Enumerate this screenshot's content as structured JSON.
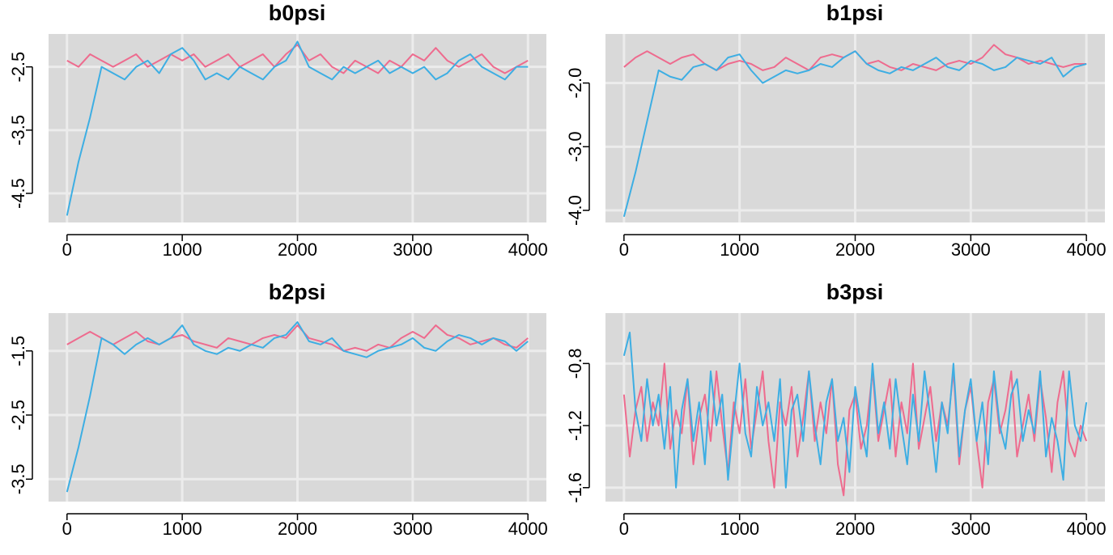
{
  "chart_data": [
    {
      "type": "line",
      "title": "b0psi",
      "x": [
        0,
        100,
        200,
        300,
        400,
        500,
        600,
        700,
        800,
        900,
        1000,
        1100,
        1200,
        1300,
        1400,
        1500,
        1600,
        1700,
        1800,
        1900,
        2000,
        2100,
        2200,
        2300,
        2400,
        2500,
        2600,
        2700,
        2800,
        2900,
        3000,
        3100,
        3200,
        3300,
        3400,
        3500,
        3600,
        3700,
        3800,
        3900,
        4000
      ],
      "series": [
        {
          "color": "#ee6b8e",
          "values": [
            -2.4,
            -2.5,
            -2.3,
            -2.4,
            -2.5,
            -2.4,
            -2.3,
            -2.5,
            -2.4,
            -2.3,
            -2.4,
            -2.3,
            -2.5,
            -2.4,
            -2.3,
            -2.5,
            -2.4,
            -2.3,
            -2.5,
            -2.3,
            -2.15,
            -2.4,
            -2.3,
            -2.5,
            -2.6,
            -2.4,
            -2.5,
            -2.6,
            -2.4,
            -2.5,
            -2.3,
            -2.4,
            -2.2,
            -2.4,
            -2.5,
            -2.4,
            -2.3,
            -2.5,
            -2.6,
            -2.5,
            -2.4
          ]
        },
        {
          "color": "#3daee3",
          "values": [
            -4.85,
            -4.0,
            -3.3,
            -2.5,
            -2.6,
            -2.7,
            -2.5,
            -2.4,
            -2.6,
            -2.3,
            -2.2,
            -2.4,
            -2.7,
            -2.6,
            -2.7,
            -2.5,
            -2.6,
            -2.7,
            -2.5,
            -2.4,
            -2.1,
            -2.5,
            -2.6,
            -2.7,
            -2.5,
            -2.6,
            -2.5,
            -2.4,
            -2.6,
            -2.5,
            -2.6,
            -2.5,
            -2.7,
            -2.6,
            -2.4,
            -2.3,
            -2.5,
            -2.6,
            -2.7,
            -2.5,
            -2.5
          ]
        }
      ],
      "xlim": [
        -160,
        4160
      ],
      "xticks": [
        0,
        1000,
        2000,
        3000,
        4000
      ],
      "ylim": [
        -4.96,
        -1.98
      ],
      "yticks": [
        -2.5,
        -3.5,
        -4.5
      ],
      "grid": true
    },
    {
      "type": "line",
      "title": "b1psi",
      "x": [
        0,
        100,
        200,
        300,
        400,
        500,
        600,
        700,
        800,
        900,
        1000,
        1100,
        1200,
        1300,
        1400,
        1500,
        1600,
        1700,
        1800,
        1900,
        2000,
        2100,
        2200,
        2300,
        2400,
        2500,
        2600,
        2700,
        2800,
        2900,
        3000,
        3100,
        3200,
        3300,
        3400,
        3500,
        3600,
        3700,
        3800,
        3900,
        4000
      ],
      "series": [
        {
          "color": "#ee6b8e",
          "values": [
            -1.75,
            -1.6,
            -1.5,
            -1.6,
            -1.7,
            -1.6,
            -1.55,
            -1.7,
            -1.8,
            -1.7,
            -1.65,
            -1.7,
            -1.8,
            -1.75,
            -1.6,
            -1.7,
            -1.8,
            -1.6,
            -1.55,
            -1.6,
            -1.5,
            -1.7,
            -1.65,
            -1.75,
            -1.8,
            -1.7,
            -1.75,
            -1.8,
            -1.7,
            -1.65,
            -1.7,
            -1.6,
            -1.4,
            -1.55,
            -1.6,
            -1.7,
            -1.65,
            -1.7,
            -1.75,
            -1.7,
            -1.7
          ]
        },
        {
          "color": "#3daee3",
          "values": [
            -4.1,
            -3.4,
            -2.6,
            -1.8,
            -1.9,
            -1.95,
            -1.75,
            -1.7,
            -1.8,
            -1.6,
            -1.55,
            -1.8,
            -2.0,
            -1.9,
            -1.8,
            -1.85,
            -1.8,
            -1.7,
            -1.75,
            -1.6,
            -1.5,
            -1.7,
            -1.8,
            -1.85,
            -1.75,
            -1.8,
            -1.7,
            -1.6,
            -1.75,
            -1.8,
            -1.65,
            -1.7,
            -1.8,
            -1.75,
            -1.6,
            -1.65,
            -1.7,
            -1.6,
            -1.9,
            -1.75,
            -1.7
          ]
        }
      ],
      "xlim": [
        -160,
        4160
      ],
      "xticks": [
        0,
        1000,
        2000,
        3000,
        4000
      ],
      "ylim": [
        -4.19,
        -1.23
      ],
      "yticks": [
        {
          "value": -2,
          "label": "-2.0"
        },
        {
          "value": -3,
          "label": "-3.0"
        },
        {
          "value": -4,
          "label": "-4.0"
        }
      ],
      "grid": true
    },
    {
      "type": "line",
      "title": "b2psi",
      "x": [
        0,
        100,
        200,
        300,
        400,
        500,
        600,
        700,
        800,
        900,
        1000,
        1100,
        1200,
        1300,
        1400,
        1500,
        1600,
        1700,
        1800,
        1900,
        2000,
        2100,
        2200,
        2300,
        2400,
        2500,
        2600,
        2700,
        2800,
        2900,
        3000,
        3100,
        3200,
        3300,
        3400,
        3500,
        3600,
        3700,
        3800,
        3900,
        4000
      ],
      "series": [
        {
          "color": "#ee6b8e",
          "values": [
            -1.4,
            -1.3,
            -1.2,
            -1.3,
            -1.4,
            -1.3,
            -1.2,
            -1.35,
            -1.4,
            -1.3,
            -1.25,
            -1.35,
            -1.4,
            -1.45,
            -1.3,
            -1.35,
            -1.4,
            -1.3,
            -1.25,
            -1.3,
            -1.1,
            -1.3,
            -1.35,
            -1.4,
            -1.5,
            -1.45,
            -1.5,
            -1.4,
            -1.45,
            -1.3,
            -1.2,
            -1.3,
            -1.1,
            -1.25,
            -1.3,
            -1.4,
            -1.35,
            -1.3,
            -1.4,
            -1.45,
            -1.3
          ]
        },
        {
          "color": "#3daee3",
          "values": [
            -3.7,
            -3.0,
            -2.2,
            -1.3,
            -1.4,
            -1.55,
            -1.4,
            -1.3,
            -1.4,
            -1.3,
            -1.1,
            -1.4,
            -1.5,
            -1.55,
            -1.45,
            -1.5,
            -1.4,
            -1.45,
            -1.3,
            -1.25,
            -1.05,
            -1.35,
            -1.4,
            -1.3,
            -1.5,
            -1.55,
            -1.6,
            -1.5,
            -1.45,
            -1.4,
            -1.3,
            -1.45,
            -1.5,
            -1.35,
            -1.25,
            -1.3,
            -1.4,
            -1.3,
            -1.35,
            -1.5,
            -1.35
          ]
        }
      ],
      "xlim": [
        -160,
        4160
      ],
      "xticks": [
        0,
        1000,
        2000,
        3000,
        4000
      ],
      "ylim": [
        -3.85,
        -0.91
      ],
      "yticks": [
        -1.5,
        -2.5,
        -3.5
      ],
      "grid": true
    },
    {
      "type": "line",
      "title": "b3psi",
      "x": [
        0,
        50,
        100,
        150,
        200,
        250,
        300,
        350,
        400,
        450,
        500,
        550,
        600,
        650,
        700,
        750,
        800,
        850,
        900,
        950,
        1000,
        1050,
        1100,
        1150,
        1200,
        1250,
        1300,
        1350,
        1400,
        1450,
        1500,
        1550,
        1600,
        1650,
        1700,
        1750,
        1800,
        1850,
        1900,
        1950,
        2000,
        2050,
        2100,
        2150,
        2200,
        2250,
        2300,
        2350,
        2400,
        2450,
        2500,
        2550,
        2600,
        2650,
        2700,
        2750,
        2800,
        2850,
        2900,
        2950,
        3000,
        3050,
        3100,
        3150,
        3200,
        3250,
        3300,
        3350,
        3400,
        3450,
        3500,
        3550,
        3600,
        3650,
        3700,
        3750,
        3800,
        3850,
        3900,
        3950,
        4000
      ],
      "series": [
        {
          "color": "#ee6b8e",
          "values": [
            -1.0,
            -1.4,
            -1.1,
            -0.95,
            -1.3,
            -1.05,
            -1.2,
            -0.8,
            -1.35,
            -1.1,
            -1.25,
            -0.9,
            -1.45,
            -1.15,
            -1.0,
            -1.3,
            -0.85,
            -1.2,
            -1.5,
            -1.05,
            -1.25,
            -0.9,
            -1.35,
            -1.1,
            -0.85,
            -1.3,
            -1.6,
            -1.05,
            -1.2,
            -0.95,
            -1.4,
            -1.15,
            -0.85,
            -1.3,
            -1.05,
            -1.25,
            -0.9,
            -1.45,
            -1.65,
            -1.1,
            -1.0,
            -1.35,
            -1.2,
            -0.85,
            -1.3,
            -1.1,
            -0.9,
            -1.4,
            -1.05,
            -1.25,
            -0.8,
            -1.35,
            -1.15,
            -0.95,
            -1.3,
            -1.05,
            -1.2,
            -0.85,
            -1.45,
            -1.1,
            -0.95,
            -1.3,
            -1.6,
            -1.05,
            -0.9,
            -1.25,
            -1.1,
            -0.85,
            -1.4,
            -1.2,
            -1.0,
            -1.3,
            -0.9,
            -1.15,
            -1.5,
            -1.05,
            -0.85,
            -1.3,
            -1.4,
            -1.2,
            -1.3
          ]
        },
        {
          "color": "#3daee3",
          "values": [
            -0.75,
            -0.6,
            -1.1,
            -1.3,
            -0.9,
            -1.2,
            -1.0,
            -1.35,
            -0.95,
            -1.6,
            -1.1,
            -0.9,
            -1.3,
            -1.05,
            -1.45,
            -0.85,
            -1.2,
            -1.0,
            -1.55,
            -1.15,
            -0.8,
            -1.25,
            -1.4,
            -0.95,
            -1.2,
            -1.05,
            -1.3,
            -0.9,
            -1.6,
            -1.1,
            -1.0,
            -1.3,
            -0.85,
            -1.2,
            -1.45,
            -1.05,
            -0.9,
            -1.3,
            -1.15,
            -1.5,
            -0.95,
            -1.2,
            -1.4,
            -0.8,
            -1.25,
            -1.05,
            -1.35,
            -0.9,
            -1.2,
            -1.45,
            -1.0,
            -1.3,
            -0.85,
            -1.15,
            -1.5,
            -1.05,
            -1.25,
            -0.8,
            -1.4,
            -1.1,
            -0.9,
            -1.3,
            -1.05,
            -1.45,
            -0.85,
            -1.2,
            -1.35,
            -1.0,
            -0.9,
            -1.3,
            -1.1,
            -1.25,
            -0.85,
            -1.4,
            -1.15,
            -1.3,
            -1.55,
            -0.85,
            -1.2,
            -1.3,
            -1.05
          ]
        }
      ],
      "xlim": [
        -160,
        4160
      ],
      "xticks": [
        0,
        1000,
        2000,
        3000,
        4000
      ],
      "ylim": [
        -1.69,
        -0.475
      ],
      "yticks": [
        -0.8,
        -1.2,
        -1.6
      ],
      "grid": true
    }
  ]
}
